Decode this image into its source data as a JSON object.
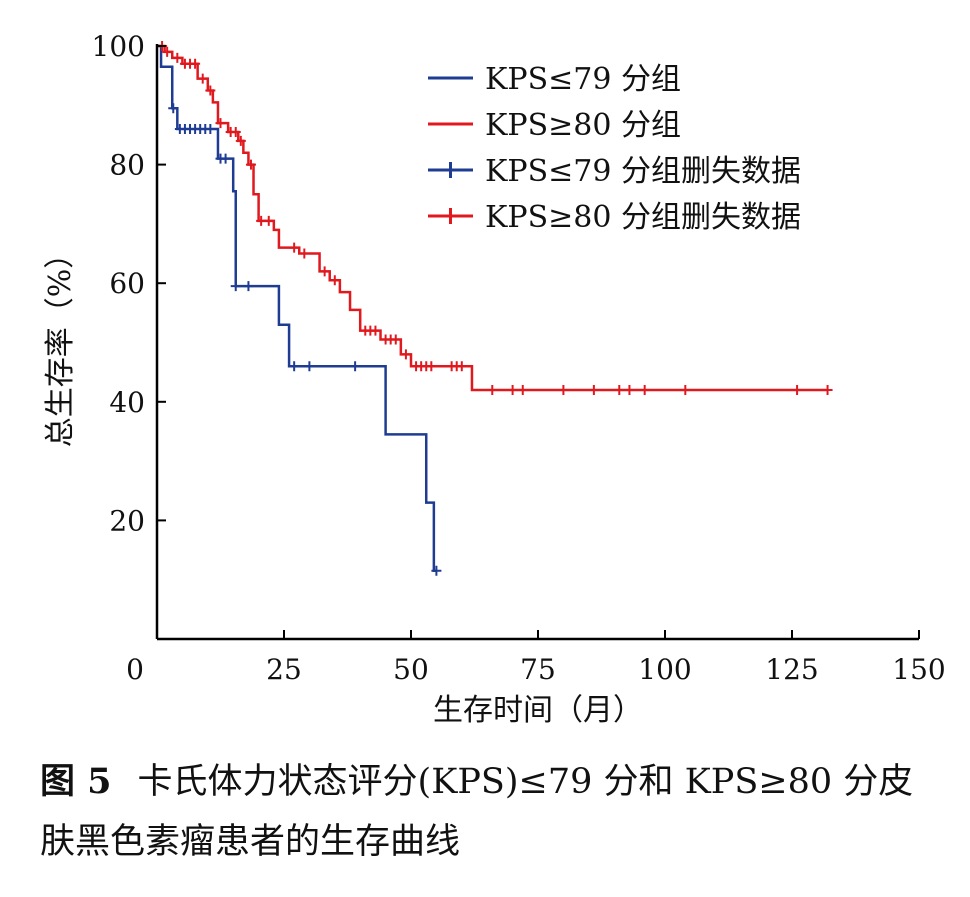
{
  "chart_data": {
    "type": "line",
    "xlabel": "生存时间（月）",
    "ylabel": "总生存率（%）",
    "xlim": [
      0,
      150
    ],
    "ylim": [
      0,
      100
    ],
    "x_ticks": [
      "0",
      "25",
      "50",
      "75",
      "100",
      "125",
      "150"
    ],
    "y_ticks": [
      "20",
      "40",
      "60",
      "80",
      "100"
    ],
    "grid": false,
    "legend_position": "top-right",
    "legend": [
      {
        "label": "KPS≤79 分组",
        "color": "#1f3c93",
        "marker": "line"
      },
      {
        "label": "KPS≥80 分组",
        "color": "#e0191f",
        "marker": "line"
      },
      {
        "label": "KPS≤79 分组删失数据",
        "color": "#1f3c93",
        "marker": "plus"
      },
      {
        "label": "KPS≥80 分组删失数据",
        "color": "#e0191f",
        "marker": "plus"
      }
    ],
    "series": [
      {
        "name": "KPS≤79 分组",
        "color": "#1f3c93",
        "steps": [
          [
            0,
            100
          ],
          [
            0.8,
            96.5
          ],
          [
            3,
            89.5
          ],
          [
            4,
            86
          ],
          [
            12,
            81
          ],
          [
            15,
            75.5
          ],
          [
            15.5,
            59.5
          ],
          [
            24,
            53
          ],
          [
            26,
            46
          ],
          [
            45,
            34.5
          ],
          [
            53,
            23
          ],
          [
            54.5,
            11.5
          ],
          [
            55,
            11.5
          ]
        ],
        "censored": [
          [
            3.2,
            89.5
          ],
          [
            4.5,
            86
          ],
          [
            5.5,
            86
          ],
          [
            6.5,
            86
          ],
          [
            7.5,
            86
          ],
          [
            8.5,
            86
          ],
          [
            9.5,
            86
          ],
          [
            10.5,
            86
          ],
          [
            12.5,
            81
          ],
          [
            13.5,
            81
          ],
          [
            15.5,
            59.5
          ],
          [
            18,
            59.5
          ],
          [
            27,
            46
          ],
          [
            30,
            46
          ],
          [
            39,
            46
          ],
          [
            55,
            11.5
          ]
        ]
      },
      {
        "name": "KPS≥80 分组",
        "color": "#e0191f",
        "steps": [
          [
            0,
            100
          ],
          [
            1.5,
            99
          ],
          [
            3,
            98
          ],
          [
            5,
            97
          ],
          [
            8,
            94.5
          ],
          [
            10,
            92.5
          ],
          [
            11,
            90.5
          ],
          [
            12,
            87
          ],
          [
            14,
            85.5
          ],
          [
            16,
            84
          ],
          [
            17,
            82
          ],
          [
            18,
            80
          ],
          [
            19,
            75
          ],
          [
            20,
            70.5
          ],
          [
            23,
            69
          ],
          [
            24,
            66
          ],
          [
            28,
            65
          ],
          [
            32,
            62
          ],
          [
            34,
            60.5
          ],
          [
            36,
            58.5
          ],
          [
            38,
            55.5
          ],
          [
            40,
            52
          ],
          [
            44,
            50.5
          ],
          [
            48,
            48
          ],
          [
            50,
            46
          ],
          [
            62,
            42
          ],
          [
            132,
            42
          ]
        ],
        "censored": [
          [
            1,
            100
          ],
          [
            2,
            99
          ],
          [
            4,
            98
          ],
          [
            5.5,
            97
          ],
          [
            6.5,
            97
          ],
          [
            7.5,
            97
          ],
          [
            9,
            94.5
          ],
          [
            10.5,
            92.5
          ],
          [
            12.5,
            87
          ],
          [
            14.5,
            85.5
          ],
          [
            15.5,
            85.5
          ],
          [
            16.5,
            84
          ],
          [
            18.5,
            80
          ],
          [
            20.5,
            70.5
          ],
          [
            22,
            70.5
          ],
          [
            27,
            66
          ],
          [
            29,
            65
          ],
          [
            33,
            62
          ],
          [
            35,
            60.5
          ],
          [
            41,
            52
          ],
          [
            42,
            52
          ],
          [
            43,
            52
          ],
          [
            45,
            50.5
          ],
          [
            46,
            50.5
          ],
          [
            47,
            50.5
          ],
          [
            49,
            48
          ],
          [
            51,
            46
          ],
          [
            52,
            46
          ],
          [
            53,
            46
          ],
          [
            54,
            46
          ],
          [
            58,
            46
          ],
          [
            59,
            46
          ],
          [
            60,
            46
          ],
          [
            66,
            42
          ],
          [
            70,
            42
          ],
          [
            72,
            42
          ],
          [
            80,
            42
          ],
          [
            86,
            42
          ],
          [
            91,
            42
          ],
          [
            93,
            42
          ],
          [
            96,
            42
          ],
          [
            104,
            42
          ],
          [
            126,
            42
          ],
          [
            132,
            42
          ]
        ]
      }
    ]
  },
  "caption": {
    "figure_number": "图 5",
    "text": "卡氏体力状态评分(KPS)≤79 分和 KPS≥80 分皮肤黑色素瘤患者的生存曲线"
  }
}
